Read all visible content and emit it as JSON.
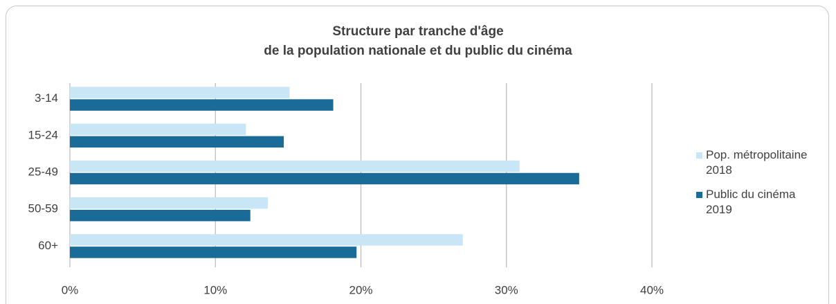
{
  "chart_data": {
    "type": "hbar",
    "title": [
      "Structure par tranche d'âge",
      "de la population nationale et du public du cinéma"
    ],
    "categories": [
      "3-14",
      "15-24",
      "25-49",
      "50-59",
      "60+"
    ],
    "series": [
      {
        "name": "Pop. métropolitaine 2018",
        "color": "#c9e6f6",
        "values": [
          15.1,
          12.1,
          30.9,
          13.6,
          27.0
        ]
      },
      {
        "name": "Public du cinéma 2019",
        "color": "#1b6b98",
        "values": [
          18.1,
          14.7,
          35.0,
          12.4,
          19.7
        ]
      }
    ],
    "xlim": [
      0,
      40
    ],
    "xticks": [
      {
        "value": 0,
        "label": "0%"
      },
      {
        "value": 10,
        "label": "10%"
      },
      {
        "value": 20,
        "label": "20%"
      },
      {
        "value": 30,
        "label": "30%"
      },
      {
        "value": 40,
        "label": "40%"
      }
    ],
    "grid": true,
    "legend": "right"
  }
}
